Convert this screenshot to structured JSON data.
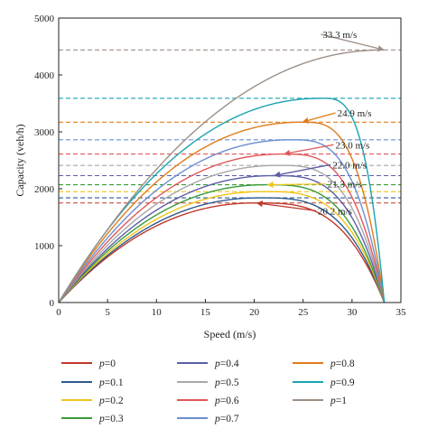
{
  "chart_data": {
    "type": "line",
    "title": "",
    "xlabel": "Speed (m/s)",
    "ylabel": "Capacity (veh/h)",
    "xlim": [
      0,
      35
    ],
    "ylim": [
      0,
      5000
    ],
    "xticks": [
      0,
      5,
      10,
      15,
      20,
      25,
      30,
      35
    ],
    "yticks": [
      0,
      1000,
      2000,
      3000,
      4000,
      5000
    ],
    "grid": false,
    "legend_position": "bottom",
    "legend_columns": 3,
    "v_max": 33.3,
    "series": [
      {
        "name": "p=0",
        "p": "0",
        "color": "#c0392b",
        "peak_speed": 20.2,
        "peak_capacity": 1750
      },
      {
        "name": "p=0.1",
        "p": "0.1",
        "color": "#2c5a8f",
        "peak_speed": 20.6,
        "peak_capacity": 1840
      },
      {
        "name": "p=0.2",
        "p": "0.2",
        "color": "#f0c419",
        "peak_speed": 21.0,
        "peak_capacity": 1950
      },
      {
        "name": "p=0.3",
        "p": "0.3",
        "color": "#3a9a3a",
        "peak_speed": 21.3,
        "peak_capacity": 2070
      },
      {
        "name": "p=0.4",
        "p": "0.4",
        "color": "#5b5ea6",
        "peak_speed": 22.0,
        "peak_capacity": 2230
      },
      {
        "name": "p=0.5",
        "p": "0.5",
        "color": "#a8a8a8",
        "peak_speed": 22.5,
        "peak_capacity": 2410
      },
      {
        "name": "p=0.6",
        "p": "0.6",
        "color": "#e15759",
        "peak_speed": 23.0,
        "peak_capacity": 2610
      },
      {
        "name": "p=0.7",
        "p": "0.7",
        "color": "#6a8fd0",
        "peak_speed": 23.8,
        "peak_capacity": 2860
      },
      {
        "name": "p=0.8",
        "p": "0.8",
        "color": "#e07b1a",
        "peak_speed": 24.9,
        "peak_capacity": 3170
      },
      {
        "name": "p=0.9",
        "p": "0.9",
        "color": "#1aa3b0",
        "peak_speed": 27.0,
        "peak_capacity": 3590
      },
      {
        "name": "p=1",
        "p": "1",
        "color": "#9e8f86",
        "peak_speed": 33.3,
        "peak_capacity": 4440
      }
    ],
    "annotations": [
      {
        "text": "20.2 m/s",
        "series": "p=0",
        "arrow_color": "#c0392b",
        "label_x": 26.5,
        "label_y": 1550
      },
      {
        "text": "21.3 m/s",
        "series": "p=0.3",
        "arrow_color": "#f0c419",
        "label_x": 27.5,
        "label_y": 2020
      },
      {
        "text": "22.0 m/s",
        "series": "p=0.4",
        "arrow_color": "#5b5ea6",
        "label_x": 28.0,
        "label_y": 2360
      },
      {
        "text": "23.0 m/s",
        "series": "p=0.6",
        "arrow_color": "#e15759",
        "label_x": 28.3,
        "label_y": 2710
      },
      {
        "text": "24.9 m/s",
        "series": "p=0.8",
        "arrow_color": "#e07b1a",
        "label_x": 28.5,
        "label_y": 3270
      },
      {
        "text": "33.3 m/s",
        "series": "p=1",
        "arrow_color": "#9e8f86",
        "label_x": 27.0,
        "label_y": 4650
      }
    ]
  }
}
